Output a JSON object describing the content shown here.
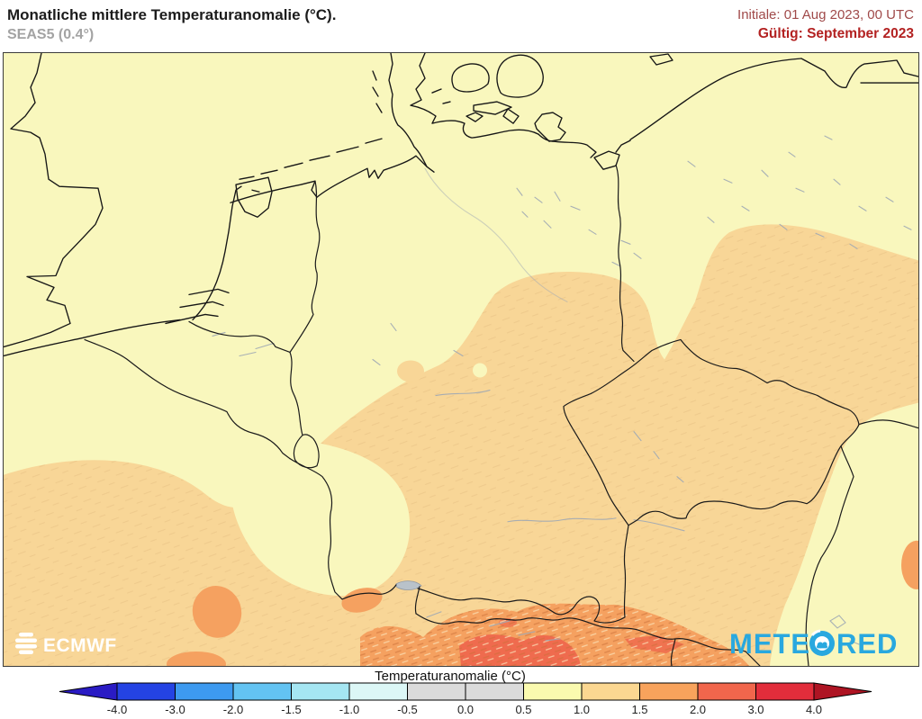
{
  "header": {
    "title": "Monatliche mittlere Temperaturanomalie (°C).",
    "model": "SEAS5 (0.4°)",
    "init": "Initiale: 01 Aug 2023, 00 UTC",
    "valid": "Gültig: September 2023"
  },
  "map": {
    "logo_ecmwf": "ECMWF",
    "logo_meteored_left": "METE",
    "logo_meteored_right": "RED"
  },
  "colorbar": {
    "title": "Temperaturanomalie (°C)",
    "ticks": [
      "-4.0",
      "-3.0",
      "-2.0",
      "-1.5",
      "-1.0",
      "-0.5",
      "0.0",
      "0.5",
      "1.0",
      "1.5",
      "2.0",
      "3.0",
      "4.0"
    ],
    "segment_colors": [
      "#2443E3",
      "#3D9AF0",
      "#63C3F2",
      "#A5E6F2",
      "#DCF7F6",
      "#DBDBDB",
      "#DBDBDB",
      "#FAFAAF",
      "#FBD791",
      "#F8A35C",
      "#F1664C",
      "#E22D3B"
    ],
    "left_arrow_color": "#2A1BC4",
    "right_arrow_color": "#AE1423"
  },
  "colors": {
    "base": "#F9F7BD",
    "anom_1_0": "#F8D697",
    "anom_1_5": "#F5A160",
    "anom_2_0": "#EF6B4E",
    "water": "#9FA8B4",
    "init_text": "#A04A4A",
    "valid_text": "#B32222",
    "meteored_blue": "#29A8DF"
  }
}
